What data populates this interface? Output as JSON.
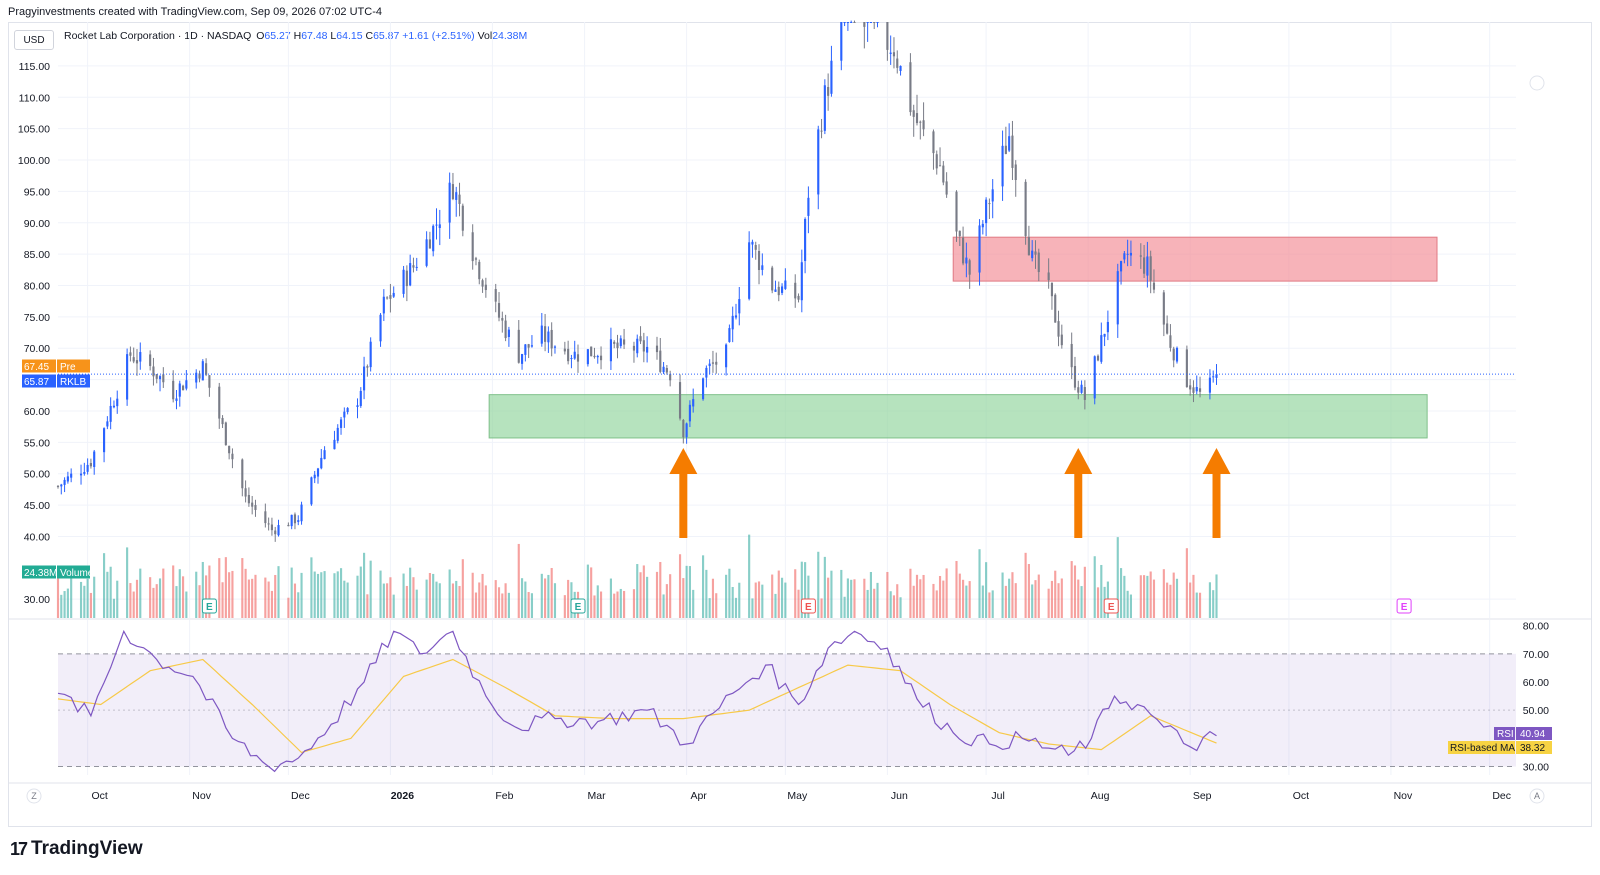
{
  "header": {
    "watermark_line": "Pragyinvestments created with TradingView.com, Sep 09, 2026 07:02 UTC-4"
  },
  "toolbar": {
    "currency": "USD"
  },
  "legend": {
    "symbol_line": "Rocket Lab Corporation · 1D · NASDAQ",
    "o_label": "O",
    "o_value": "65.27",
    "h_label": "H",
    "h_value": "67.48",
    "l_label": "L",
    "l_value": "64.15",
    "c_label": "C",
    "c_value": "65.87",
    "change": "+1.61 (+2.51%)",
    "vol_label": "Vol",
    "vol_value": "24.38M"
  },
  "price_axis": {
    "ticks": [
      "115.00",
      "110.00",
      "105.00",
      "100.00",
      "95.00",
      "90.00",
      "85.00",
      "80.00",
      "75.00",
      "70.00",
      "65.00",
      "60.00",
      "55.00",
      "50.00",
      "45.00",
      "40.00",
      "30.00"
    ],
    "pre_badge": {
      "value": "67.45",
      "label": "Pre",
      "color": "#f7931a"
    },
    "last_badge": {
      "value": "65.87",
      "label": "RKLB",
      "color": "#2962ff"
    },
    "volume_badge": {
      "value": "24.38M",
      "label": "Volume",
      "color": "#22ab94"
    }
  },
  "rsi_axis": {
    "ticks": [
      "80.00",
      "70.00",
      "60.00",
      "50.00",
      "30.00"
    ],
    "rsi_badge": {
      "label": "RSI",
      "value": "40.94",
      "color": "#7e57c2"
    },
    "ma_badge": {
      "label": "RSI-based MA",
      "value": "38.32",
      "color": "#f7d343"
    }
  },
  "time_axis": {
    "labels": [
      "Oct",
      "Nov",
      "Dec",
      "2026",
      "Feb",
      "Mar",
      "Apr",
      "May",
      "Jun",
      "Jul",
      "Aug",
      "Sep",
      "Oct",
      "Nov",
      "Dec"
    ],
    "left_button": "Z",
    "right_button": "A"
  },
  "earnings_markers": [
    "E",
    "E",
    "E",
    "E",
    "E"
  ],
  "footer": {
    "brand": "TradingView",
    "brand_mark": "17"
  },
  "colors": {
    "up": "#2962ff",
    "down": "#787b86",
    "vol_up": "#26a69a",
    "vol_down": "#ef5350",
    "resistance_zone": "#f28b94",
    "support_zone": "#8fd49b",
    "arrow": "#f57c00",
    "rsi_line": "#7e57c2",
    "rsi_ma": "#f7c948"
  },
  "chart_data": [
    {
      "type": "candlestick",
      "title": "Rocket Lab Corporation · 1D · NASDAQ",
      "ylim": [
        27,
        122
      ],
      "x_range": [
        "2025-09-22",
        "2026-12-09"
      ],
      "points": [
        [
          "2025-09-22",
          48
        ],
        [
          "2025-10-02",
          52
        ],
        [
          "2025-10-14",
          69
        ],
        [
          "2025-10-20",
          67
        ],
        [
          "2025-10-27",
          63
        ],
        [
          "2025-11-05",
          67
        ],
        [
          "2025-11-18",
          46
        ],
        [
          "2025-11-26",
          41
        ],
        [
          "2025-12-04",
          43
        ],
        [
          "2025-12-12",
          54
        ],
        [
          "2025-12-22",
          62
        ],
        [
          "2025-12-30",
          77
        ],
        [
          "2026-01-08",
          83
        ],
        [
          "2026-01-15",
          90
        ],
        [
          "2026-01-20",
          96
        ],
        [
          "2026-01-27",
          84
        ],
        [
          "2026-02-02",
          76
        ],
        [
          "2026-02-09",
          69
        ],
        [
          "2026-02-16",
          72
        ],
        [
          "2026-02-26",
          69
        ],
        [
          "2026-03-10",
          70
        ],
        [
          "2026-03-20",
          70
        ],
        [
          "2026-03-27",
          66
        ],
        [
          "2026-03-31",
          57
        ],
        [
          "2026-04-06",
          66
        ],
        [
          "2026-04-13",
          69
        ],
        [
          "2026-04-20",
          87
        ],
        [
          "2026-04-27",
          80
        ],
        [
          "2026-05-05",
          78
        ],
        [
          "2026-05-08",
          95
        ],
        [
          "2026-05-13",
          110
        ],
        [
          "2026-05-19",
          123
        ],
        [
          "2026-05-26",
          121
        ],
        [
          "2026-06-03",
          118
        ],
        [
          "2026-06-09",
          107
        ],
        [
          "2026-06-17",
          99
        ],
        [
          "2026-06-22",
          88
        ],
        [
          "2026-06-26",
          82
        ],
        [
          "2026-07-01",
          92
        ],
        [
          "2026-07-08",
          104
        ],
        [
          "2026-07-15",
          84
        ],
        [
          "2026-07-20",
          79
        ],
        [
          "2026-07-26",
          67
        ],
        [
          "2026-07-31",
          62
        ],
        [
          "2026-08-05",
          71
        ],
        [
          "2026-08-09",
          79
        ],
        [
          "2026-08-13",
          85
        ],
        [
          "2026-08-19",
          83
        ],
        [
          "2026-08-25",
          72
        ],
        [
          "2026-08-31",
          65
        ],
        [
          "2026-09-05",
          62
        ],
        [
          "2026-09-09",
          65.87
        ]
      ],
      "zones": [
        {
          "from": "2026-06-21",
          "to": "2026-11-15",
          "low": 80.7,
          "high": 87.7
        },
        {
          "from": "2026-01-31",
          "to": "2026-11-12",
          "low": 55.7,
          "high": 62.6
        }
      ],
      "arrows": [
        "2026-03-31",
        "2026-07-29",
        "2026-09-09"
      ]
    },
    {
      "type": "bar",
      "series": [
        {
          "name": "Volume",
          "values": [
            24.38
          ]
        }
      ]
    },
    {
      "type": "line",
      "ylim": [
        27,
        82
      ],
      "bands": [
        30,
        50,
        70
      ],
      "series": [
        {
          "name": "RSI",
          "points": [
            [
              "2025-09-22",
              56
            ],
            [
              "2025-10-02",
              48
            ],
            [
              "2025-10-12",
              78
            ],
            [
              "2025-10-22",
              68
            ],
            [
              "2025-11-02",
              62
            ],
            [
              "2025-11-14",
              40
            ],
            [
              "2025-11-25",
              30
            ],
            [
              "2025-12-04",
              33
            ],
            [
              "2025-12-14",
              45
            ],
            [
              "2025-12-24",
              60
            ],
            [
              "2026-01-02",
              78
            ],
            [
              "2026-01-10",
              70
            ],
            [
              "2026-01-20",
              78
            ],
            [
              "2026-01-30",
              55
            ],
            [
              "2026-02-08",
              44
            ],
            [
              "2026-02-20",
              47
            ],
            [
              "2026-03-05",
              46
            ],
            [
              "2026-03-20",
              50
            ],
            [
              "2026-04-01",
              38
            ],
            [
              "2026-04-15",
              56
            ],
            [
              "2026-04-25",
              66
            ],
            [
              "2026-05-05",
              52
            ],
            [
              "2026-05-14",
              72
            ],
            [
              "2026-05-22",
              78
            ],
            [
              "2026-06-01",
              72
            ],
            [
              "2026-06-10",
              54
            ],
            [
              "2026-06-21",
              42
            ],
            [
              "2026-07-02",
              38
            ],
            [
              "2026-07-12",
              40
            ],
            [
              "2026-07-26",
              34
            ],
            [
              "2026-08-02",
              40
            ],
            [
              "2026-08-09",
              55
            ],
            [
              "2026-08-16",
              52
            ],
            [
              "2026-08-24",
              44
            ],
            [
              "2026-09-01",
              37
            ],
            [
              "2026-09-09",
              40.94
            ]
          ]
        },
        {
          "name": "RSI-based MA",
          "points": [
            [
              "2025-09-22",
              54
            ],
            [
              "2025-10-05",
              52
            ],
            [
              "2025-10-20",
              64
            ],
            [
              "2025-11-05",
              68
            ],
            [
              "2025-11-20",
              52
            ],
            [
              "2025-12-05",
              35
            ],
            [
              "2025-12-20",
              40
            ],
            [
              "2026-01-05",
              62
            ],
            [
              "2026-01-20",
              68
            ],
            [
              "2026-02-05",
              58
            ],
            [
              "2026-02-20",
              48
            ],
            [
              "2026-03-10",
              47
            ],
            [
              "2026-03-31",
              47
            ],
            [
              "2026-04-20",
              50
            ],
            [
              "2026-05-05",
              58
            ],
            [
              "2026-05-20",
              66
            ],
            [
              "2026-06-05",
              64
            ],
            [
              "2026-06-20",
              52
            ],
            [
              "2026-07-05",
              42
            ],
            [
              "2026-07-20",
              38
            ],
            [
              "2026-08-05",
              36
            ],
            [
              "2026-08-20",
              48
            ],
            [
              "2026-09-09",
              38.32
            ]
          ]
        }
      ]
    }
  ]
}
